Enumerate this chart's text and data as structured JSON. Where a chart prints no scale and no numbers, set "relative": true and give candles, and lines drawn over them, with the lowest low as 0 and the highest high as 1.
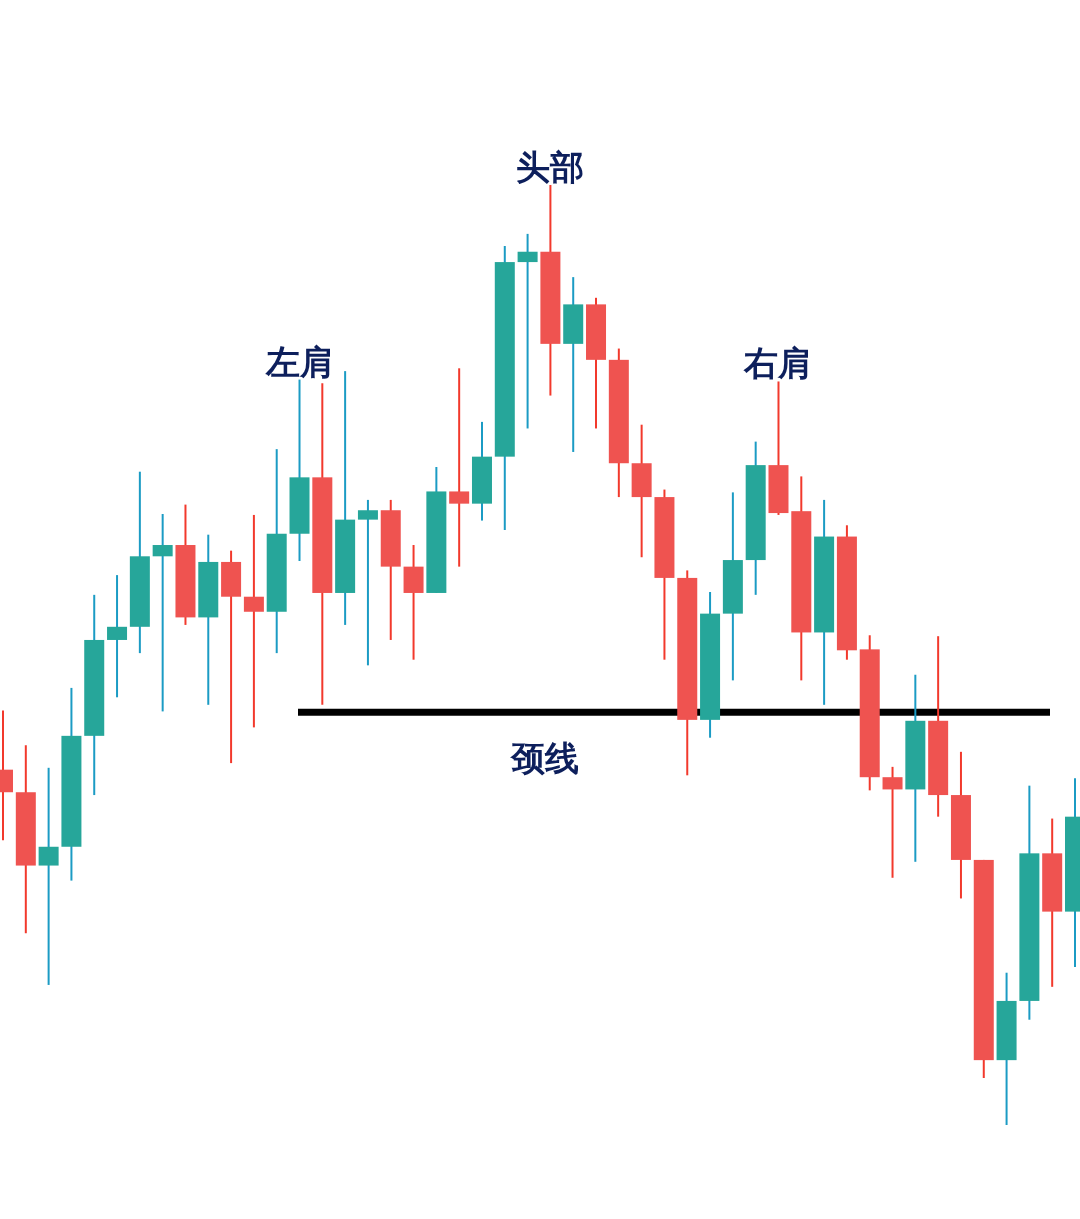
{
  "chart_data": {
    "type": "candlestick",
    "relative": true,
    "categories": [
      null,
      null,
      null,
      null,
      null,
      null,
      null,
      null,
      null,
      null,
      null,
      null,
      null,
      null,
      null,
      null,
      null,
      null,
      null,
      null,
      null,
      null,
      null,
      null,
      null,
      null,
      null,
      null,
      null,
      null,
      null,
      null,
      null,
      null,
      null,
      null,
      null,
      null,
      null,
      null,
      null,
      null,
      null,
      null,
      null,
      null,
      null,
      null
    ],
    "ohlc": [
      [
        0.378,
        0.441,
        0.303,
        0.354
      ],
      [
        0.354,
        0.404,
        0.204,
        0.276
      ],
      [
        0.276,
        0.38,
        0.149,
        0.296
      ],
      [
        0.296,
        0.465,
        0.26,
        0.414
      ],
      [
        0.414,
        0.564,
        0.351,
        0.516
      ],
      [
        0.516,
        0.585,
        0.455,
        0.53
      ],
      [
        0.53,
        0.695,
        0.502,
        0.605
      ],
      [
        0.605,
        0.65,
        0.44,
        0.617
      ],
      [
        0.617,
        0.66,
        0.532,
        0.54
      ],
      [
        0.54,
        0.628,
        0.447,
        0.599
      ],
      [
        0.599,
        0.611,
        0.385,
        0.562
      ],
      [
        0.562,
        0.649,
        0.423,
        0.546
      ],
      [
        0.546,
        0.719,
        0.502,
        0.629
      ],
      [
        0.629,
        0.793,
        0.6,
        0.689
      ],
      [
        0.689,
        0.789,
        0.447,
        0.566
      ],
      [
        0.566,
        0.802,
        0.532,
        0.644
      ],
      [
        0.644,
        0.665,
        0.489,
        0.654
      ],
      [
        0.654,
        0.665,
        0.516,
        0.594
      ],
      [
        0.594,
        0.617,
        0.495,
        0.566
      ],
      [
        0.566,
        0.7,
        0.566,
        0.674
      ],
      [
        0.674,
        0.805,
        0.594,
        0.661
      ],
      [
        0.661,
        0.748,
        0.643,
        0.711
      ],
      [
        0.711,
        0.935,
        0.633,
        0.918
      ],
      [
        0.918,
        0.948,
        0.741,
        0.929
      ],
      [
        0.929,
        1.0,
        0.776,
        0.831
      ],
      [
        0.831,
        0.902,
        0.716,
        0.873
      ],
      [
        0.873,
        0.88,
        0.741,
        0.814
      ],
      [
        0.814,
        0.826,
        0.668,
        0.704
      ],
      [
        0.704,
        0.745,
        0.604,
        0.668
      ],
      [
        0.668,
        0.676,
        0.495,
        0.582
      ],
      [
        0.582,
        0.59,
        0.372,
        0.431
      ],
      [
        0.431,
        0.567,
        0.412,
        0.544
      ],
      [
        0.544,
        0.673,
        0.473,
        0.601
      ],
      [
        0.601,
        0.727,
        0.564,
        0.702
      ],
      [
        0.702,
        0.791,
        0.649,
        0.651
      ],
      [
        0.653,
        0.69,
        0.473,
        0.524
      ],
      [
        0.524,
        0.665,
        0.447,
        0.626
      ],
      [
        0.626,
        0.638,
        0.495,
        0.505
      ],
      [
        0.506,
        0.521,
        0.356,
        0.37
      ],
      [
        0.37,
        0.381,
        0.263,
        0.357
      ],
      [
        0.357,
        0.479,
        0.28,
        0.43
      ],
      [
        0.43,
        0.52,
        0.328,
        0.351
      ],
      [
        0.351,
        0.397,
        0.241,
        0.282
      ],
      [
        0.282,
        0.282,
        0.05,
        0.069
      ],
      [
        0.069,
        0.162,
        0.0,
        0.132
      ],
      [
        0.132,
        0.361,
        0.112,
        0.289
      ],
      [
        0.289,
        0.326,
        0.147,
        0.227
      ],
      [
        0.227,
        0.369,
        0.168,
        0.328
      ]
    ],
    "annotations": [
      {
        "text": "头部",
        "y": 1.0
      },
      {
        "text": "左肩",
        "y": 0.793
      },
      {
        "text": "右肩",
        "y": 0.791
      }
    ],
    "ref_lines": [
      {
        "axis": "y",
        "value": 0.439,
        "label": "颈线",
        "color": "#000000"
      }
    ]
  }
}
